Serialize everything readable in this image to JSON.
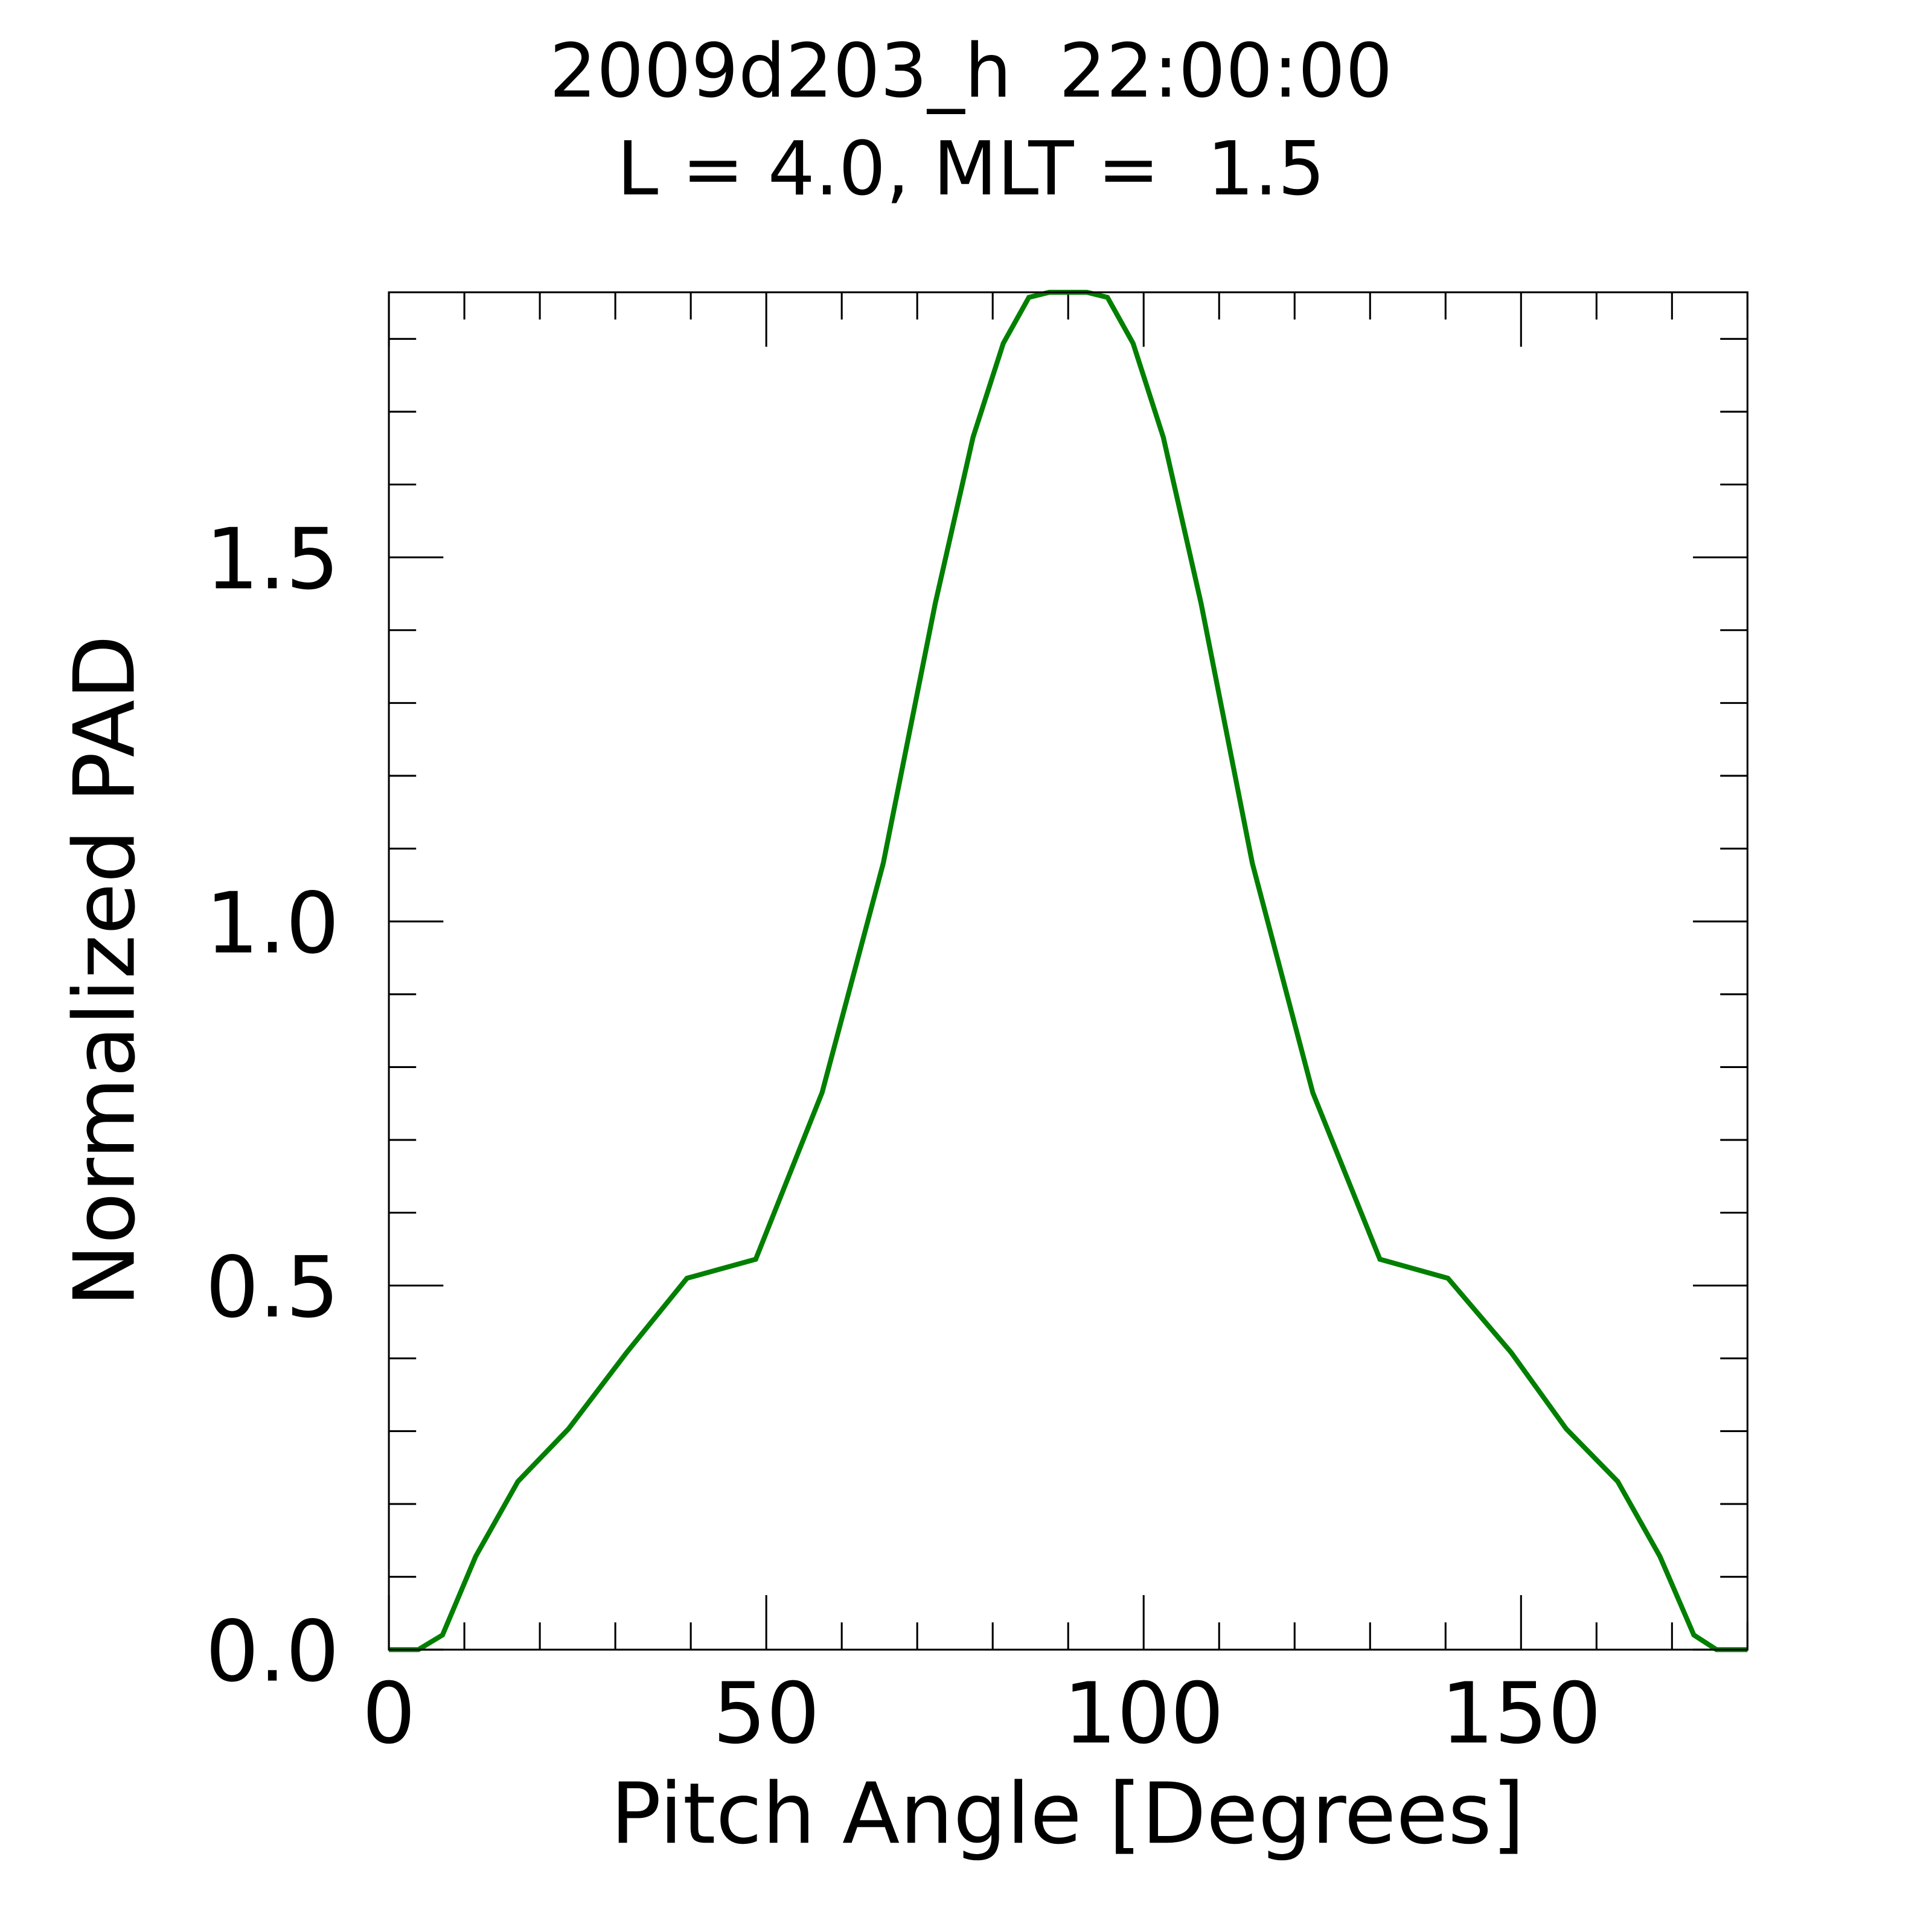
{
  "chart_data": {
    "type": "line",
    "title": "2009d203_h  22:00:00",
    "subtitle": "L = 4.0, MLT =  1.5",
    "xlabel": "Pitch Angle [Degrees]",
    "ylabel": "Normalized PAD",
    "xlim": [
      0,
      180
    ],
    "ylim": [
      0,
      1.864
    ],
    "xticks": [
      0,
      50,
      100,
      150
    ],
    "xtick_labels": [
      "0",
      "50",
      "100",
      "150"
    ],
    "yticks": [
      0.0,
      0.5,
      1.0,
      1.5
    ],
    "ytick_labels": [
      "0.0",
      "0.5",
      "1.0",
      "1.5"
    ],
    "x_minor_step": 10,
    "y_minor_step": 0.1,
    "grid": false,
    "series": [
      {
        "name": "PAD",
        "color": "#007f00",
        "x": [
          0,
          3.9,
          7.1,
          11.5,
          17.1,
          23.8,
          31.5,
          39.5,
          48.6,
          57.4,
          65.5,
          72.4,
          77.4,
          81.4,
          84.8,
          87.5,
          92.5,
          95.2,
          98.6,
          102.6,
          107.6,
          114.4,
          122.4,
          131.3,
          140.3,
          148.7,
          156.0,
          162.8,
          168.4,
          172.9,
          175.9,
          180
        ],
        "y": [
          0,
          0,
          0.02,
          0.128,
          0.231,
          0.303,
          0.408,
          0.51,
          0.536,
          0.765,
          1.08,
          1.437,
          1.665,
          1.794,
          1.857,
          1.864,
          1.864,
          1.857,
          1.794,
          1.665,
          1.437,
          1.08,
          0.765,
          0.536,
          0.51,
          0.408,
          0.303,
          0.231,
          0.128,
          0.02,
          0,
          0
        ]
      }
    ]
  }
}
